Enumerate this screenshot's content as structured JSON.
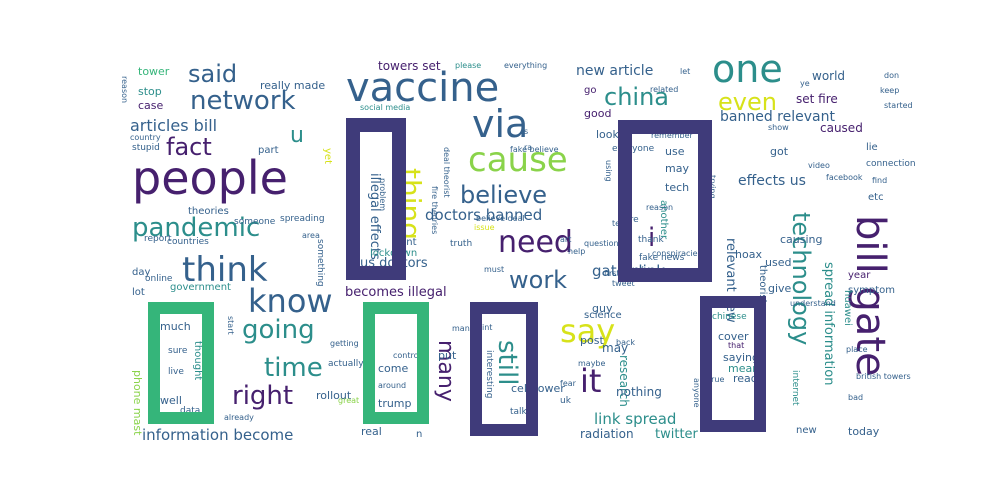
{
  "wordcloud": {
    "colors": {
      "purple": "#46206e",
      "indigo": "#3f3b7a",
      "navy": "#35618c",
      "teal": "#2c8e8b",
      "green": "#35b57a",
      "lime": "#8ad34a",
      "yellow": "#d7e21a",
      "blue": "#3b6f97"
    },
    "box_glyph": "",
    "words": [
      {
        "text": "people",
        "color": "purple"
      },
      {
        "text": "vaccine",
        "color": "navy"
      },
      {
        "text": "one",
        "color": "teal"
      },
      {
        "text": "via",
        "color": "navy"
      },
      {
        "text": "cause",
        "color": "lime"
      },
      {
        "text": "network",
        "color": "navy"
      },
      {
        "text": "china",
        "color": "teal"
      },
      {
        "text": "said",
        "color": "navy"
      },
      {
        "text": "think",
        "color": "navy"
      },
      {
        "text": "pandemic",
        "color": "teal"
      },
      {
        "text": "fact",
        "color": "purple"
      },
      {
        "text": "know",
        "color": "navy"
      },
      {
        "text": "going",
        "color": "teal"
      },
      {
        "text": "time",
        "color": "teal"
      },
      {
        "text": "right",
        "color": "purple"
      },
      {
        "text": "need",
        "color": "purple"
      },
      {
        "text": "believe",
        "color": "navy"
      },
      {
        "text": "work",
        "color": "navy"
      },
      {
        "text": "say",
        "color": "yellow"
      },
      {
        "text": "it",
        "color": "purple"
      },
      {
        "text": "bill gate",
        "color": "purple"
      },
      {
        "text": "technology",
        "color": "teal"
      },
      {
        "text": "even",
        "color": "yellow"
      },
      {
        "text": "thing",
        "color": "yellow"
      },
      {
        "text": "many",
        "color": "purple"
      },
      {
        "text": "still",
        "color": "teal"
      },
      {
        "text": "u",
        "color": "teal"
      },
      {
        "text": "i",
        "color": "purple"
      },
      {
        "text": "articles bill",
        "color": "navy"
      },
      {
        "text": "doctors banned",
        "color": "navy"
      },
      {
        "text": "gates link",
        "color": "navy"
      },
      {
        "text": "new article",
        "color": "navy"
      },
      {
        "text": "banned relevant",
        "color": "navy"
      },
      {
        "text": "effects us",
        "color": "navy"
      },
      {
        "text": "link spread",
        "color": "teal"
      },
      {
        "text": "information become",
        "color": "navy"
      },
      {
        "text": "spread information",
        "color": "teal"
      },
      {
        "text": "illegal effects",
        "color": "navy"
      },
      {
        "text": "relevant new",
        "color": "navy"
      },
      {
        "text": "becomes illegal",
        "color": "purple"
      },
      {
        "text": "us doctors",
        "color": "navy"
      },
      {
        "text": "towers set",
        "color": "purple"
      },
      {
        "text": "set fire",
        "color": "purple"
      },
      {
        "text": "really made",
        "color": "navy"
      },
      {
        "text": "stop",
        "color": "teal"
      },
      {
        "text": "case",
        "color": "purple"
      },
      {
        "text": "tower",
        "color": "green"
      },
      {
        "text": "world",
        "color": "navy"
      },
      {
        "text": "caused",
        "color": "purple"
      },
      {
        "text": "tech",
        "color": "navy"
      },
      {
        "text": "use",
        "color": "navy"
      },
      {
        "text": "may",
        "color": "navy"
      },
      {
        "text": "look",
        "color": "navy"
      },
      {
        "text": "good",
        "color": "purple"
      },
      {
        "text": "go",
        "color": "purple"
      },
      {
        "text": "got",
        "color": "navy"
      },
      {
        "text": "lie",
        "color": "navy"
      },
      {
        "text": "etc",
        "color": "navy"
      },
      {
        "text": "hoax",
        "color": "navy"
      },
      {
        "text": "causing",
        "color": "navy"
      },
      {
        "text": "used",
        "color": "navy"
      },
      {
        "text": "give",
        "color": "navy"
      },
      {
        "text": "year",
        "color": "purple"
      },
      {
        "text": "symptom",
        "color": "navy"
      },
      {
        "text": "cover",
        "color": "navy"
      },
      {
        "text": "saying",
        "color": "navy"
      },
      {
        "text": "read",
        "color": "navy"
      },
      {
        "text": "mean",
        "color": "teal"
      },
      {
        "text": "new",
        "color": "navy"
      },
      {
        "text": "today",
        "color": "navy"
      },
      {
        "text": "twitter",
        "color": "teal"
      },
      {
        "text": "radiation",
        "color": "navy"
      },
      {
        "text": "research",
        "color": "teal"
      },
      {
        "text": "nothing",
        "color": "navy"
      },
      {
        "text": "may",
        "color": "navy"
      },
      {
        "text": "cell tower",
        "color": "navy"
      },
      {
        "text": "put",
        "color": "navy"
      },
      {
        "text": "come",
        "color": "navy"
      },
      {
        "text": "trump",
        "color": "navy"
      },
      {
        "text": "rollout",
        "color": "navy"
      },
      {
        "text": "real",
        "color": "navy"
      },
      {
        "text": "much",
        "color": "navy"
      },
      {
        "text": "well",
        "color": "navy"
      },
      {
        "text": "lot",
        "color": "navy"
      },
      {
        "text": "day",
        "color": "navy"
      },
      {
        "text": "government",
        "color": "teal"
      },
      {
        "text": "phone mast",
        "color": "lime"
      },
      {
        "text": "thought",
        "color": "teal"
      },
      {
        "text": "lockdown",
        "color": "teal"
      },
      {
        "text": "want",
        "color": "navy"
      },
      {
        "text": "guy",
        "color": "navy"
      },
      {
        "text": "post",
        "color": "navy"
      },
      {
        "text": "science",
        "color": "navy"
      },
      {
        "text": "part",
        "color": "navy"
      },
      {
        "text": "yet",
        "color": "yellow"
      },
      {
        "text": "someone",
        "color": "navy"
      },
      {
        "text": "countries",
        "color": "navy"
      },
      {
        "text": "report",
        "color": "navy"
      },
      {
        "text": "stupid",
        "color": "navy"
      },
      {
        "text": "fake news",
        "color": "navy"
      },
      {
        "text": "social media",
        "color": "teal"
      },
      {
        "text": "everyone",
        "color": "navy"
      },
      {
        "text": "another",
        "color": "teal"
      },
      {
        "text": "theorist",
        "color": "navy"
      },
      {
        "text": "huawei",
        "color": "teal"
      },
      {
        "text": "connection",
        "color": "navy"
      },
      {
        "text": "please",
        "color": "teal"
      },
      {
        "text": "everything",
        "color": "navy"
      },
      {
        "text": "online",
        "color": "navy"
      },
      {
        "text": "thank",
        "color": "navy"
      },
      {
        "text": "chinese",
        "color": "teal"
      },
      {
        "text": "internet",
        "color": "teal"
      },
      {
        "text": "interesting",
        "color": "navy"
      },
      {
        "text": "uk",
        "color": "navy"
      },
      {
        "text": "talk",
        "color": "navy"
      },
      {
        "text": "data",
        "color": "navy"
      },
      {
        "text": "live",
        "color": "navy"
      },
      {
        "text": "sure",
        "color": "navy"
      },
      {
        "text": "already",
        "color": "navy"
      },
      {
        "text": "great",
        "color": "lime"
      },
      {
        "text": "around",
        "color": "navy"
      },
      {
        "text": "control",
        "color": "navy"
      },
      {
        "text": "actually",
        "color": "navy"
      },
      {
        "text": "something",
        "color": "navy"
      },
      {
        "text": "spreading",
        "color": "navy"
      },
      {
        "text": "truth",
        "color": "navy"
      },
      {
        "text": "question",
        "color": "navy"
      },
      {
        "text": "maybe",
        "color": "navy"
      },
      {
        "text": "bad",
        "color": "navy"
      },
      {
        "text": "video",
        "color": "navy"
      },
      {
        "text": "facebook",
        "color": "navy"
      },
      {
        "text": "find",
        "color": "navy"
      },
      {
        "text": "british towers",
        "color": "navy"
      },
      {
        "text": "fake believe",
        "color": "navy"
      },
      {
        "text": "remember",
        "color": "navy"
      },
      {
        "text": "first",
        "color": "navy"
      },
      {
        "text": "deal theorist",
        "color": "navy"
      },
      {
        "text": "fire theories",
        "color": "navy"
      },
      {
        "text": "believe deal",
        "color": "navy"
      },
      {
        "text": "problem",
        "color": "navy"
      },
      {
        "text": "must",
        "color": "navy"
      },
      {
        "text": "shit",
        "color": "navy"
      },
      {
        "text": "point",
        "color": "navy"
      },
      {
        "text": "back",
        "color": "navy"
      },
      {
        "text": "true",
        "color": "navy"
      },
      {
        "text": "anyone",
        "color": "navy"
      },
      {
        "text": "conspiracie",
        "color": "navy"
      },
      {
        "text": "help",
        "color": "navy"
      },
      {
        "text": "started",
        "color": "navy"
      },
      {
        "text": "keep",
        "color": "navy"
      },
      {
        "text": "don",
        "color": "navy"
      },
      {
        "text": "show",
        "color": "navy"
      },
      {
        "text": "let",
        "color": "navy"
      },
      {
        "text": "related",
        "color": "navy"
      },
      {
        "text": "reason",
        "color": "navy"
      },
      {
        "text": "country",
        "color": "navy"
      },
      {
        "text": "start",
        "color": "navy"
      },
      {
        "text": "using",
        "color": "navy"
      },
      {
        "text": "getting",
        "color": "navy"
      },
      {
        "text": "issue",
        "color": "yellow"
      },
      {
        "text": "tweet",
        "color": "navy"
      },
      {
        "text": "fear",
        "color": "navy"
      },
      {
        "text": "place",
        "color": "navy"
      },
      {
        "text": "trying",
        "color": "navy"
      },
      {
        "text": "understand",
        "color": "navy"
      },
      {
        "text": "man",
        "color": "navy"
      },
      {
        "text": "theories",
        "color": "navy"
      },
      {
        "text": "that",
        "color": "purple"
      },
      {
        "text": "ye",
        "color": "navy"
      },
      {
        "text": "n",
        "color": "navy"
      },
      {
        "text": "s",
        "color": "navy"
      },
      {
        "text": "ra",
        "color": "navy"
      },
      {
        "text": "linked",
        "color": "navy"
      },
      {
        "text": "reason",
        "color": "navy"
      },
      {
        "text": "art",
        "color": "navy"
      },
      {
        "text": "test",
        "color": "navy"
      },
      {
        "text": "area",
        "color": "navy"
      },
      {
        "text": "fire",
        "color": "navy"
      },
      {
        "text": "bill gates",
        "color": "navy"
      },
      {
        "text": "%",
        "color": "navy"
      }
    ]
  }
}
